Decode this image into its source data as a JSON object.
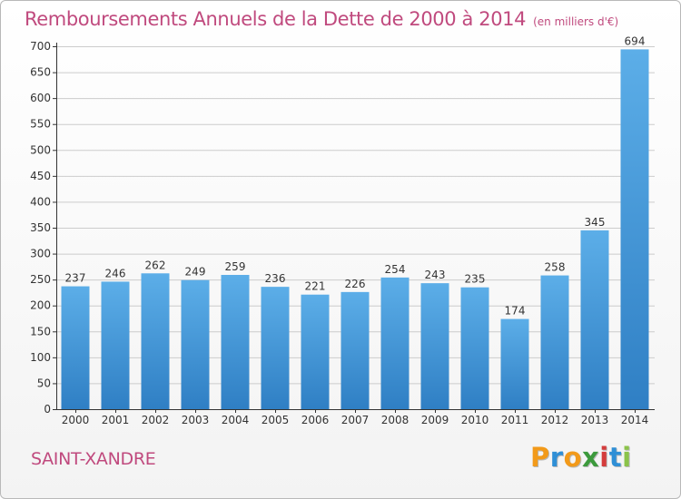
{
  "title": "Remboursements Annuels de la Dette de 2000 à 2014",
  "unit_note": "(en milliers d'€)",
  "commune": "SAINT-XANDRE",
  "logo": {
    "text": "Proxiti",
    "letters": [
      {
        "ch": "P",
        "color": "#f29a1a"
      },
      {
        "ch": "r",
        "color": "#2f8fd6"
      },
      {
        "ch": "o",
        "color": "#f29a1a"
      },
      {
        "ch": "x",
        "color": "#3c9a3c"
      },
      {
        "ch": "i",
        "color": "#d43c3c"
      },
      {
        "ch": "t",
        "color": "#2f8fd6"
      },
      {
        "ch": "i",
        "color": "#8bc34a"
      }
    ]
  },
  "colors": {
    "accent": "#c04a7e",
    "bar_top": "#5caee8",
    "bar_bottom": "#2f7fc4",
    "grid": "#cccccc",
    "axis": "#333333"
  },
  "chart_data": {
    "type": "bar",
    "title": "Remboursements Annuels de la Dette de 2000 à 2014",
    "xlabel": "",
    "ylabel": "",
    "categories": [
      "2000",
      "2001",
      "2002",
      "2003",
      "2004",
      "2005",
      "2006",
      "2007",
      "2008",
      "2009",
      "2010",
      "2011",
      "2012",
      "2013",
      "2014"
    ],
    "values": [
      237,
      246,
      262,
      249,
      259,
      236,
      221,
      226,
      254,
      243,
      235,
      174,
      258,
      345,
      694
    ],
    "ylim": [
      0,
      700
    ],
    "yticks": [
      0,
      50,
      100,
      150,
      200,
      250,
      300,
      350,
      400,
      450,
      500,
      550,
      600,
      650,
      700
    ],
    "grid": true,
    "data_labels": true
  }
}
